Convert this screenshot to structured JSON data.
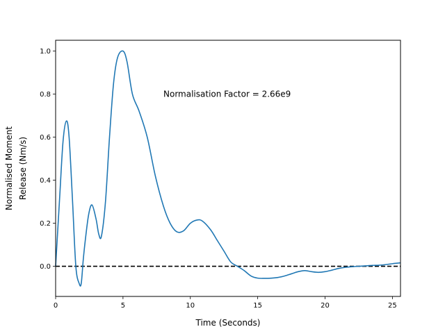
{
  "chart_data": {
    "type": "line",
    "title": "",
    "xlabel": "Time (Seconds)",
    "ylabel_lines": [
      "Normalised Moment",
      "Release (Nm/s)"
    ],
    "xlim": [
      0,
      25.6
    ],
    "ylim": [
      -0.14,
      1.05
    ],
    "xticks": [
      0,
      5,
      10,
      15,
      20,
      25
    ],
    "yticks": [
      0.0,
      0.2,
      0.4,
      0.6,
      0.8,
      1.0
    ],
    "xtick_labels": [
      "0",
      "5",
      "10",
      "15",
      "20",
      "25"
    ],
    "ytick_labels": [
      "0.0",
      "0.2",
      "0.4",
      "0.6",
      "0.8",
      "1.0"
    ],
    "grid": false,
    "annotation": "Normalisation Factor = 2.66e9",
    "reference_line": {
      "y": 0.0,
      "style": "dashed",
      "color": "#000000"
    },
    "line_color": "#1f77b4",
    "series": [
      {
        "x": [
          0,
          0.3,
          0.55,
          0.8,
          1.0,
          1.25,
          1.5,
          1.75,
          1.9,
          2.05,
          2.2,
          2.45,
          2.7,
          3.0,
          3.2,
          3.4,
          3.7,
          4.0,
          4.3,
          4.6,
          5.0,
          5.3,
          5.7,
          6.2,
          6.8,
          7.4,
          8.0,
          8.5,
          9.0,
          9.5,
          10.0,
          10.5,
          10.9,
          11.5,
          12.0,
          12.5,
          13.0,
          13.5,
          14.0,
          14.5,
          15.0,
          15.5,
          16.0,
          16.5,
          17.0,
          17.5,
          18.0,
          18.5,
          19.0,
          19.5,
          20.0,
          20.5,
          21.0,
          21.5,
          22.0,
          22.5,
          23.0,
          23.5,
          24.0,
          24.5,
          25.0,
          25.6
        ],
        "y": [
          0.0,
          0.32,
          0.58,
          0.675,
          0.6,
          0.31,
          0.0,
          -0.08,
          -0.08,
          0.03,
          0.12,
          0.24,
          0.285,
          0.22,
          0.15,
          0.14,
          0.3,
          0.6,
          0.85,
          0.97,
          1.0,
          0.95,
          0.8,
          0.72,
          0.6,
          0.42,
          0.28,
          0.2,
          0.16,
          0.165,
          0.2,
          0.215,
          0.21,
          0.17,
          0.12,
          0.07,
          0.02,
          0.0,
          -0.02,
          -0.045,
          -0.055,
          -0.056,
          -0.055,
          -0.052,
          -0.045,
          -0.035,
          -0.025,
          -0.02,
          -0.025,
          -0.028,
          -0.025,
          -0.018,
          -0.01,
          -0.005,
          -0.002,
          0.0,
          0.002,
          0.004,
          0.005,
          0.008,
          0.012,
          0.016
        ]
      }
    ]
  }
}
